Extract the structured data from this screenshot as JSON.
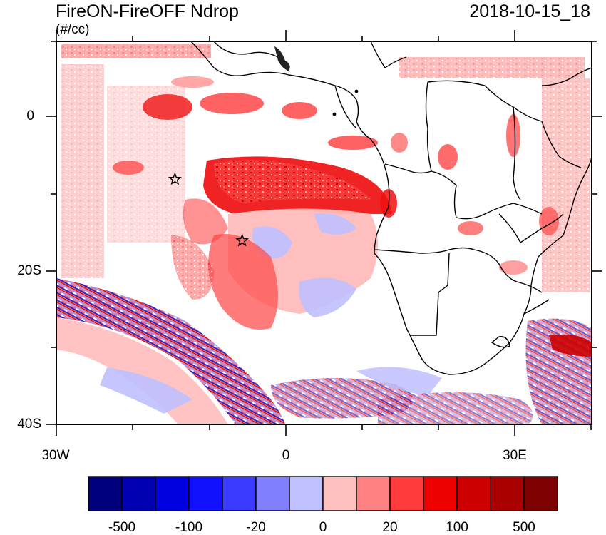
{
  "title": {
    "left": "FireON-FireOFF Ndrop",
    "right": "2018-10-15_18",
    "units": "(#/cc)"
  },
  "axes": {
    "lat_labels": [
      "0",
      "20S",
      "40S"
    ],
    "lon_labels": [
      "30W",
      "0",
      "30E"
    ],
    "lon_range": [
      -30,
      40
    ],
    "lat_range": [
      -40,
      10
    ]
  },
  "colorbar": {
    "colors": [
      "#00007f",
      "#0000b0",
      "#0000e0",
      "#1111ff",
      "#3b3bff",
      "#8080ff",
      "#c0c0ff",
      "#ffc0c0",
      "#ff8080",
      "#ff3b3b",
      "#ee0000",
      "#cc0000",
      "#aa0000",
      "#7f0000"
    ],
    "labels": [
      "-500",
      "-100",
      "-20",
      "0",
      "20",
      "100",
      "500"
    ]
  },
  "markers": [
    {
      "name": "star-1",
      "lon": -14.5,
      "lat": -8
    },
    {
      "name": "star-2",
      "lon": -5.7,
      "lat": -16
    }
  ]
}
